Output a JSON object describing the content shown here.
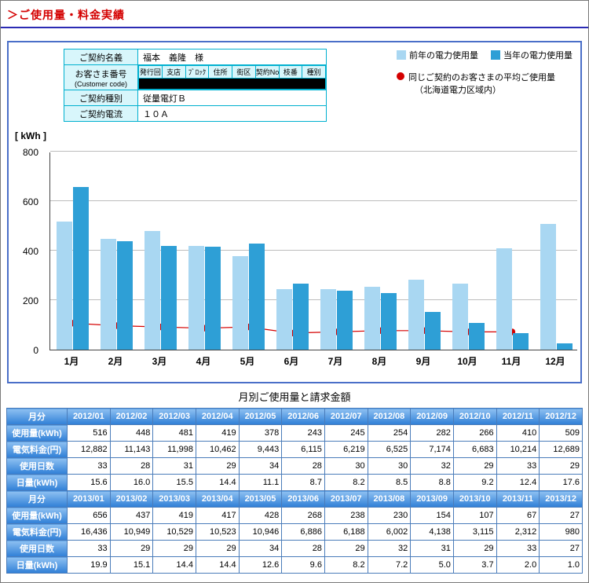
{
  "page": {
    "title": "＞ご使用量・料金実績"
  },
  "contract": {
    "name_label": "ご契約名義",
    "name_value": "福本　義隆　様",
    "customer_label": "お客さま番号",
    "customer_label_en": "(Customer code)",
    "customer_columns": [
      "発行回",
      "支店",
      "ﾌﾞﾛｯｸ",
      "住所",
      "街区",
      "契約No.",
      "枝番",
      "種別"
    ],
    "customer_value_redacted": true,
    "type_label": "ご契約種別",
    "type_value": "従量電灯Ｂ",
    "current_label": "ご契約電流",
    "current_value": "１０Ａ"
  },
  "legend": {
    "prev_label": "前年の電力使用量",
    "curr_label": "当年の電力使用量",
    "avg_label_line1": "同じご契約のお客さまの平均ご使用量",
    "avg_label_line2": "（北海道電力区域内）"
  },
  "chart_data": {
    "type": "bar",
    "unit_label": "[ kWh ]",
    "categories": [
      "1月",
      "2月",
      "3月",
      "4月",
      "5月",
      "6月",
      "7月",
      "8月",
      "9月",
      "10月",
      "11月",
      "12月"
    ],
    "series": [
      {
        "name": "前年の電力使用量",
        "color": "#a9d7f2",
        "values": [
          516,
          448,
          481,
          419,
          378,
          243,
          245,
          254,
          282,
          266,
          410,
          509
        ]
      },
      {
        "name": "当年の電力使用量",
        "color": "#2e9fd6",
        "values": [
          656,
          437,
          419,
          417,
          428,
          268,
          238,
          230,
          154,
          107,
          67,
          27
        ]
      }
    ],
    "avg_series": {
      "name": "同じご契約のお客さまの平均ご使用量（北海道電力区域内）",
      "color": "#d40000",
      "values": [
        110,
        100,
        95,
        90,
        95,
        70,
        75,
        80,
        80,
        75,
        75,
        null
      ]
    },
    "ylim": [
      0,
      800
    ],
    "yticks": [
      0,
      200,
      400,
      600,
      800
    ],
    "grid": true,
    "legend_position": "top-right"
  },
  "table": {
    "title": "月別ご使用量と請求金額",
    "month_header_label": "月分",
    "rows": [
      {
        "key": "usage",
        "label": "使用量(kWh)"
      },
      {
        "key": "charge",
        "label": "電気料金(円)"
      },
      {
        "key": "days",
        "label": "使用日数"
      },
      {
        "key": "daily",
        "label": "日量(kWh)"
      }
    ],
    "year1": {
      "months": [
        "2012/01",
        "2012/02",
        "2012/03",
        "2012/04",
        "2012/05",
        "2012/06",
        "2012/07",
        "2012/08",
        "2012/09",
        "2012/10",
        "2012/11",
        "2012/12"
      ],
      "usage": [
        "516",
        "448",
        "481",
        "419",
        "378",
        "243",
        "245",
        "254",
        "282",
        "266",
        "410",
        "509"
      ],
      "charge": [
        "12,882",
        "11,143",
        "11,998",
        "10,462",
        "9,443",
        "6,115",
        "6,219",
        "6,525",
        "7,174",
        "6,683",
        "10,214",
        "12,689"
      ],
      "days": [
        "33",
        "28",
        "31",
        "29",
        "34",
        "28",
        "30",
        "30",
        "32",
        "29",
        "33",
        "29"
      ],
      "daily": [
        "15.6",
        "16.0",
        "15.5",
        "14.4",
        "11.1",
        "8.7",
        "8.2",
        "8.5",
        "8.8",
        "9.2",
        "12.4",
        "17.6"
      ]
    },
    "year2": {
      "months": [
        "2013/01",
        "2013/02",
        "2013/03",
        "2013/04",
        "2013/05",
        "2013/06",
        "2013/07",
        "2013/08",
        "2013/09",
        "2013/10",
        "2013/11",
        "2013/12"
      ],
      "usage": [
        "656",
        "437",
        "419",
        "417",
        "428",
        "268",
        "238",
        "230",
        "154",
        "107",
        "67",
        "27"
      ],
      "charge": [
        "16,436",
        "10,949",
        "10,529",
        "10,523",
        "10,946",
        "6,886",
        "6,188",
        "6,002",
        "4,138",
        "3,115",
        "2,312",
        "980"
      ],
      "days": [
        "33",
        "29",
        "29",
        "29",
        "34",
        "28",
        "29",
        "32",
        "31",
        "29",
        "33",
        "27"
      ],
      "daily": [
        "19.9",
        "15.1",
        "14.4",
        "14.4",
        "12.6",
        "9.6",
        "8.2",
        "7.2",
        "5.0",
        "3.7",
        "2.0",
        "1.0"
      ]
    }
  },
  "ui_colors": {
    "title_red": "#d40000",
    "header_rule_blue": "#2b2bb4",
    "panel_border_blue": "#4a6fc8",
    "contract_border_cyan": "#00b0cf",
    "contract_header_bg": "#d8f6fb",
    "table_header_blue": "#2f7fd6",
    "table_border_blue": "#4a7cba",
    "redaction_black": "#000000"
  }
}
